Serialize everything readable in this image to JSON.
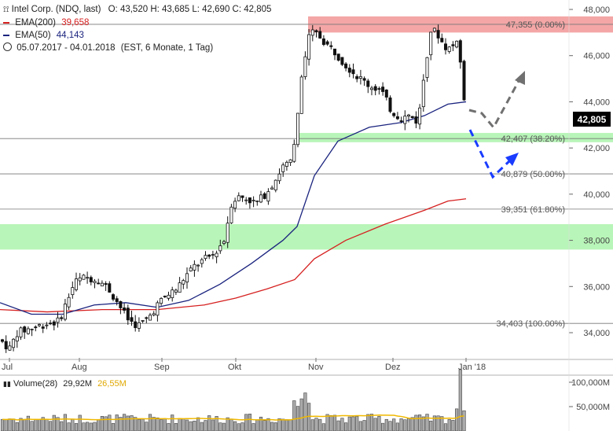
{
  "header": {
    "instrument": "Intel Corp. (NDQ, last)",
    "ohlc": "O: 43,520  H: 43,685  L: 42,690  C: 42,805",
    "ema200_label": "EMA(200)",
    "ema200_value": "39,658",
    "ema50_label": "EMA(50)",
    "ema50_value": "44,143",
    "range": "05.07.2017 - 04.01.2018",
    "range_info": "(EST, 6 Monate, 1 Tag)"
  },
  "colors": {
    "ema200": "#d62020",
    "ema50": "#1a237e",
    "zone_red": "#f4a6a6",
    "zone_green": "#b8f5b8",
    "arrow_blue": "#1a3cff",
    "arrow_gray": "#707070",
    "volume_avg": "#f0b800"
  },
  "chart_data": {
    "type": "candlestick",
    "x_ticks": [
      "Jul",
      "Aug",
      "Sep",
      "Okt",
      "Nov",
      "Dez",
      "Jan '18"
    ],
    "y_ticks": [
      "34,000",
      "36,000",
      "38,000",
      "40,000",
      "42,000",
      "44,000",
      "46,000",
      "48,000"
    ],
    "ylim": [
      33.1,
      48.0
    ],
    "last_price_label": "42,805",
    "fib_levels": [
      {
        "label": "47,355 (0.00%)",
        "value": 47.355
      },
      {
        "label": "42,407 (38.20%)",
        "value": 42.407
      },
      {
        "label": "40,879 (50.00%)",
        "value": 40.879
      },
      {
        "label": "39,351 (61.80%)",
        "value": 39.351
      },
      {
        "label": "34,403 (100.00%)",
        "value": 34.403
      }
    ],
    "resistance_zone": [
      47.0,
      47.7
    ],
    "support_zones": [
      [
        42.25,
        42.65
      ],
      [
        37.6,
        38.7
      ]
    ],
    "volume": {
      "label": "Volume(28)",
      "value": "29,92M",
      "avg_value": "26,55M",
      "y_ticks": [
        "50,000M",
        "100,000M"
      ]
    }
  }
}
